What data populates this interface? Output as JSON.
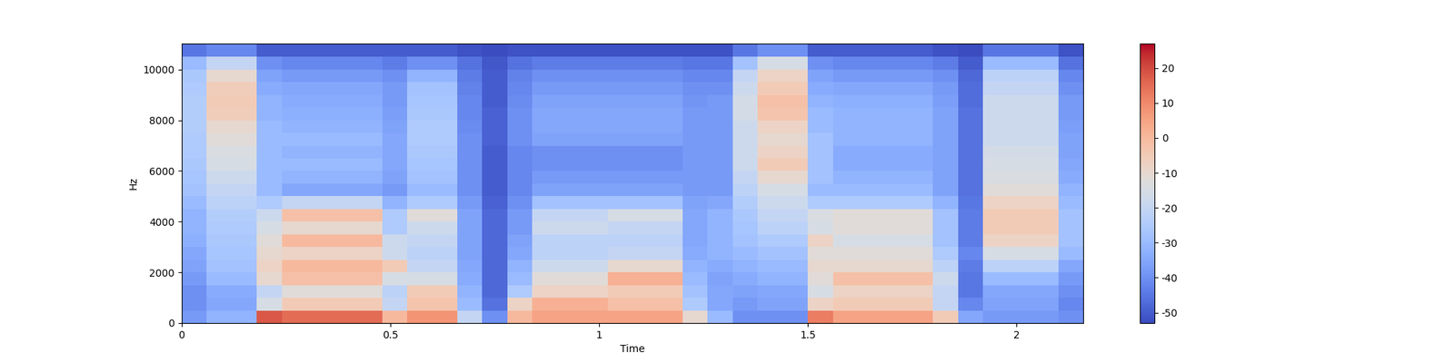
{
  "chart_data": {
    "type": "heatmap",
    "xlabel": "Time",
    "ylabel": "Hz",
    "color": "coolwarm",
    "xlim": [
      0,
      2.16
    ],
    "ylim": [
      0,
      11025
    ],
    "xticks": [
      0,
      0.5,
      1,
      1.5,
      2
    ],
    "yticks": [
      0,
      2000,
      4000,
      6000,
      8000,
      10000
    ],
    "x_edges": [
      0,
      0.06,
      0.12,
      0.18,
      0.24,
      0.3,
      0.36,
      0.42,
      0.48,
      0.54,
      0.6,
      0.66,
      0.72,
      0.78,
      0.84,
      0.9,
      0.96,
      1.02,
      1.08,
      1.14,
      1.2,
      1.26,
      1.32,
      1.38,
      1.44,
      1.5,
      1.56,
      1.62,
      1.68,
      1.74,
      1.8,
      1.86,
      1.92,
      1.98,
      2.04,
      2.1,
      2.16
    ],
    "y_edges": [
      0,
      500,
      1000,
      1500,
      2000,
      2500,
      3000,
      3500,
      4000,
      4500,
      5000,
      5500,
      6000,
      6500,
      7000,
      7500,
      8000,
      8500,
      9000,
      9500,
      10000,
      10500,
      11025
    ],
    "colorbar": {
      "range": [
        -53,
        27
      ],
      "ticks": [
        -50,
        -40,
        -30,
        -20,
        -10,
        0,
        10,
        20
      ]
    },
    "cells": [
      [
        -38,
        -32,
        -32,
        18,
        15,
        15,
        15,
        15,
        0,
        8,
        8,
        -20,
        -40,
        0,
        5,
        5,
        5,
        5,
        5,
        5,
        -10,
        -30,
        -40,
        -40,
        -40,
        12,
        5,
        5,
        5,
        5,
        -5,
        -35,
        -38,
        -38,
        -38,
        -40
      ],
      [
        -40,
        -35,
        -35,
        -15,
        -5,
        -5,
        -5,
        -5,
        -20,
        -3,
        -3,
        -30,
        -46,
        -8,
        2,
        2,
        2,
        -2,
        -2,
        -2,
        -25,
        -35,
        -38,
        -36,
        -36,
        -8,
        -5,
        -5,
        -5,
        -5,
        -20,
        -42,
        -36,
        -36,
        -36,
        -42
      ],
      [
        -40,
        -34,
        -34,
        -20,
        -12,
        -12,
        -12,
        -12,
        -22,
        -5,
        -5,
        -32,
        -48,
        -25,
        -8,
        -8,
        -8,
        -5,
        -5,
        -5,
        -28,
        -35,
        -36,
        -35,
        -35,
        -15,
        -8,
        -8,
        -8,
        -8,
        -20,
        -45,
        -35,
        -35,
        -35,
        -40
      ],
      [
        -38,
        -30,
        -30,
        -10,
        -2,
        -2,
        -2,
        -2,
        -15,
        -15,
        -15,
        -34,
        -48,
        -30,
        -12,
        -12,
        -12,
        2,
        2,
        2,
        -30,
        -36,
        -34,
        -32,
        -32,
        -12,
        -2,
        -2,
        -2,
        -2,
        -18,
        -45,
        -30,
        -30,
        -30,
        -38
      ],
      [
        -36,
        -28,
        -28,
        -8,
        0,
        0,
        0,
        0,
        -5,
        -20,
        -20,
        -35,
        -48,
        -32,
        -18,
        -18,
        -18,
        -10,
        -10,
        -10,
        -32,
        -34,
        -32,
        -30,
        -30,
        -10,
        -10,
        -10,
        -10,
        -10,
        -22,
        -44,
        -22,
        -22,
        -22,
        -35
      ],
      [
        -35,
        -27,
        -27,
        -10,
        -8,
        -8,
        -8,
        -8,
        -18,
        -22,
        -22,
        -36,
        -48,
        -35,
        -22,
        -22,
        -22,
        -20,
        -20,
        -20,
        -34,
        -32,
        -30,
        -28,
        -28,
        -12,
        -12,
        -12,
        -12,
        -12,
        -25,
        -42,
        -15,
        -15,
        -15,
        -30
      ],
      [
        -33,
        -26,
        -26,
        -12,
        0,
        0,
        0,
        0,
        -18,
        -20,
        -20,
        -36,
        -48,
        -36,
        -22,
        -22,
        -22,
        -22,
        -22,
        -22,
        -35,
        -32,
        -28,
        -25,
        -25,
        -8,
        -15,
        -15,
        -15,
        -15,
        -28,
        -44,
        -8,
        -8,
        -8,
        -28
      ],
      [
        -32,
        -25,
        -25,
        -15,
        -10,
        -10,
        -10,
        -10,
        -25,
        -18,
        -18,
        -36,
        -48,
        -38,
        -18,
        -18,
        -18,
        -20,
        -20,
        -20,
        -35,
        -32,
        -27,
        -22,
        -22,
        -15,
        -12,
        -12,
        -12,
        -12,
        -28,
        -44,
        -5,
        -5,
        -5,
        -28
      ],
      [
        -32,
        -24,
        -24,
        -18,
        -2,
        -2,
        -2,
        -2,
        -25,
        -12,
        -12,
        -36,
        -48,
        -38,
        -20,
        -20,
        -20,
        -15,
        -15,
        -15,
        -35,
        -32,
        -26,
        -20,
        -20,
        -14,
        -12,
        -12,
        -12,
        -12,
        -28,
        -44,
        -5,
        -5,
        -5,
        -28
      ],
      [
        -30,
        -22,
        -22,
        -25,
        -20,
        -20,
        -20,
        -20,
        -32,
        -25,
        -25,
        -38,
        -49,
        -40,
        -28,
        -28,
        -28,
        -28,
        -28,
        -28,
        -36,
        -35,
        -24,
        -18,
        -18,
        -25,
        -25,
        -25,
        -25,
        -25,
        -32,
        -45,
        -8,
        -8,
        -8,
        -30
      ],
      [
        -28,
        -20,
        -20,
        -30,
        -35,
        -35,
        -35,
        -35,
        -38,
        -30,
        -30,
        -40,
        -50,
        -42,
        -36,
        -36,
        -36,
        -36,
        -36,
        -36,
        -38,
        -38,
        -22,
        -15,
        -15,
        -30,
        -30,
        -30,
        -30,
        -30,
        -36,
        -46,
        -12,
        -12,
        -12,
        -32
      ],
      [
        -27,
        -18,
        -18,
        -30,
        -32,
        -32,
        -32,
        -32,
        -36,
        -28,
        -28,
        -40,
        -50,
        -42,
        -38,
        -38,
        -38,
        -38,
        -38,
        -38,
        -38,
        -38,
        -20,
        -10,
        -10,
        -28,
        -32,
        -32,
        -32,
        -32,
        -36,
        -46,
        -14,
        -14,
        -14,
        -34
      ],
      [
        -26,
        -15,
        -15,
        -30,
        -30,
        -30,
        -30,
        -30,
        -35,
        -27,
        -27,
        -40,
        -50,
        -42,
        -40,
        -40,
        -40,
        -40,
        -40,
        -40,
        -38,
        -38,
        -18,
        -5,
        -5,
        -28,
        -34,
        -34,
        -34,
        -34,
        -36,
        -46,
        -15,
        -15,
        -15,
        -35
      ],
      [
        -25,
        -14,
        -14,
        -30,
        -32,
        -32,
        -32,
        -32,
        -35,
        -26,
        -26,
        -40,
        -50,
        -42,
        -40,
        -40,
        -40,
        -40,
        -40,
        -40,
        -38,
        -38,
        -18,
        -8,
        -8,
        -28,
        -34,
        -34,
        -34,
        -34,
        -36,
        -46,
        -16,
        -16,
        -16,
        -36
      ],
      [
        -25,
        -12,
        -12,
        -30,
        -30,
        -30,
        -30,
        -30,
        -35,
        -25,
        -25,
        -40,
        -49,
        -40,
        -36,
        -36,
        -36,
        -36,
        -36,
        -36,
        -38,
        -38,
        -18,
        -10,
        -10,
        -28,
        -32,
        -32,
        -32,
        -32,
        -36,
        -46,
        -18,
        -18,
        -18,
        -36
      ],
      [
        -24,
        -10,
        -10,
        -30,
        -32,
        -32,
        -32,
        -32,
        -36,
        -25,
        -25,
        -41,
        -49,
        -40,
        -35,
        -35,
        -35,
        -35,
        -35,
        -35,
        -38,
        -38,
        -18,
        -8,
        -8,
        -30,
        -32,
        -32,
        -32,
        -32,
        -36,
        -46,
        -18,
        -18,
        -18,
        -37
      ],
      [
        -24,
        -6,
        -6,
        -32,
        -33,
        -33,
        -33,
        -33,
        -37,
        -26,
        -26,
        -42,
        -49,
        -40,
        -35,
        -35,
        -35,
        -35,
        -35,
        -35,
        -38,
        -38,
        -16,
        -3,
        -3,
        -30,
        -32,
        -32,
        -32,
        -32,
        -36,
        -46,
        -18,
        -18,
        -18,
        -38
      ],
      [
        -24,
        -5,
        -5,
        -32,
        -34,
        -34,
        -34,
        -34,
        -38,
        -27,
        -27,
        -42,
        -50,
        -41,
        -36,
        -36,
        -36,
        -36,
        -36,
        -36,
        -39,
        -38,
        -16,
        -2,
        -2,
        -32,
        -33,
        -33,
        -33,
        -33,
        -37,
        -47,
        -18,
        -18,
        -18,
        -38
      ],
      [
        -25,
        -6,
        -6,
        -34,
        -35,
        -35,
        -35,
        -35,
        -38,
        -28,
        -28,
        -43,
        -50,
        -42,
        -38,
        -38,
        -38,
        -38,
        -38,
        -38,
        -40,
        -40,
        -18,
        -5,
        -5,
        -34,
        -35,
        -35,
        -35,
        -35,
        -38,
        -47,
        -20,
        -20,
        -20,
        -40
      ],
      [
        -26,
        -10,
        -10,
        -36,
        -38,
        -38,
        -38,
        -38,
        -40,
        -32,
        -32,
        -44,
        -50,
        -43,
        -40,
        -40,
        -40,
        -40,
        -40,
        -40,
        -42,
        -42,
        -20,
        -8,
        -8,
        -36,
        -38,
        -38,
        -38,
        -38,
        -40,
        -48,
        -22,
        -22,
        -22,
        -42
      ],
      [
        -30,
        -20,
        -20,
        -40,
        -42,
        -42,
        -42,
        -42,
        -44,
        -40,
        -40,
        -46,
        -51,
        -46,
        -44,
        -44,
        -44,
        -44,
        -44,
        -44,
        -45,
        -45,
        -28,
        -15,
        -15,
        -40,
        -42,
        -42,
        -42,
        -42,
        -44,
        -50,
        -30,
        -30,
        -30,
        -46
      ],
      [
        -45,
        -42,
        -42,
        -50,
        -50,
        -50,
        -50,
        -50,
        -50,
        -50,
        -50,
        -52,
        -53,
        -52,
        -52,
        -52,
        -52,
        -52,
        -52,
        -52,
        -52,
        -52,
        -45,
        -40,
        -40,
        -50,
        -50,
        -50,
        -50,
        -50,
        -52,
        -53,
        -45,
        -45,
        -45,
        -52
      ]
    ]
  }
}
